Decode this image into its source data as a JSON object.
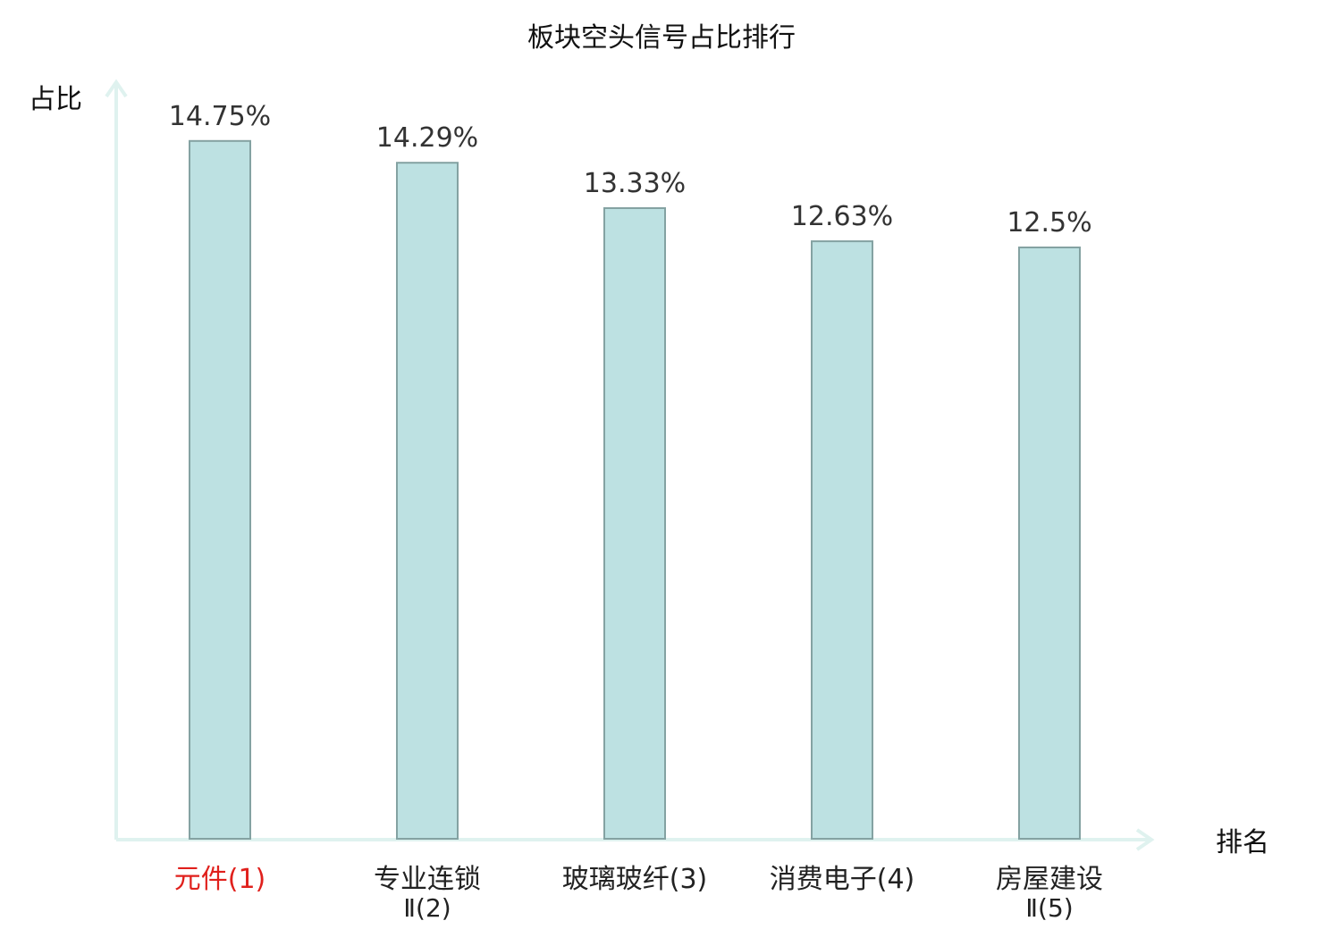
{
  "chart_data": {
    "type": "bar",
    "title": "板块空头信号占比排行",
    "ylabel": "占比",
    "xlabel": "排名",
    "ylim": [
      0,
      16.2
    ],
    "grid": false,
    "categories": [
      {
        "name": "元件",
        "rank": "(1)",
        "name_line2": "",
        "highlight": true
      },
      {
        "name": "专业连锁",
        "rank": "(2)",
        "name_line2": "Ⅱ",
        "highlight": false
      },
      {
        "name": "玻璃玻纤",
        "rank": "(3)",
        "name_line2": "",
        "highlight": false
      },
      {
        "name": "消费电子",
        "rank": "(4)",
        "name_line2": "",
        "highlight": false
      },
      {
        "name": "房屋建设",
        "rank": "(5)",
        "name_line2": "Ⅱ",
        "highlight": false
      }
    ],
    "values": [
      14.75,
      14.29,
      13.33,
      12.63,
      12.5
    ],
    "value_labels": [
      "14.75%",
      "14.29%",
      "13.33%",
      "12.63%",
      "12.5%"
    ]
  },
  "colors": {
    "bar_fill": "#bde1e2",
    "bar_stroke": "#84a2a2",
    "axis": "#dff2ef",
    "highlight_label": "#e0201c",
    "normal_label": "#222222",
    "value_label": "#333333"
  }
}
